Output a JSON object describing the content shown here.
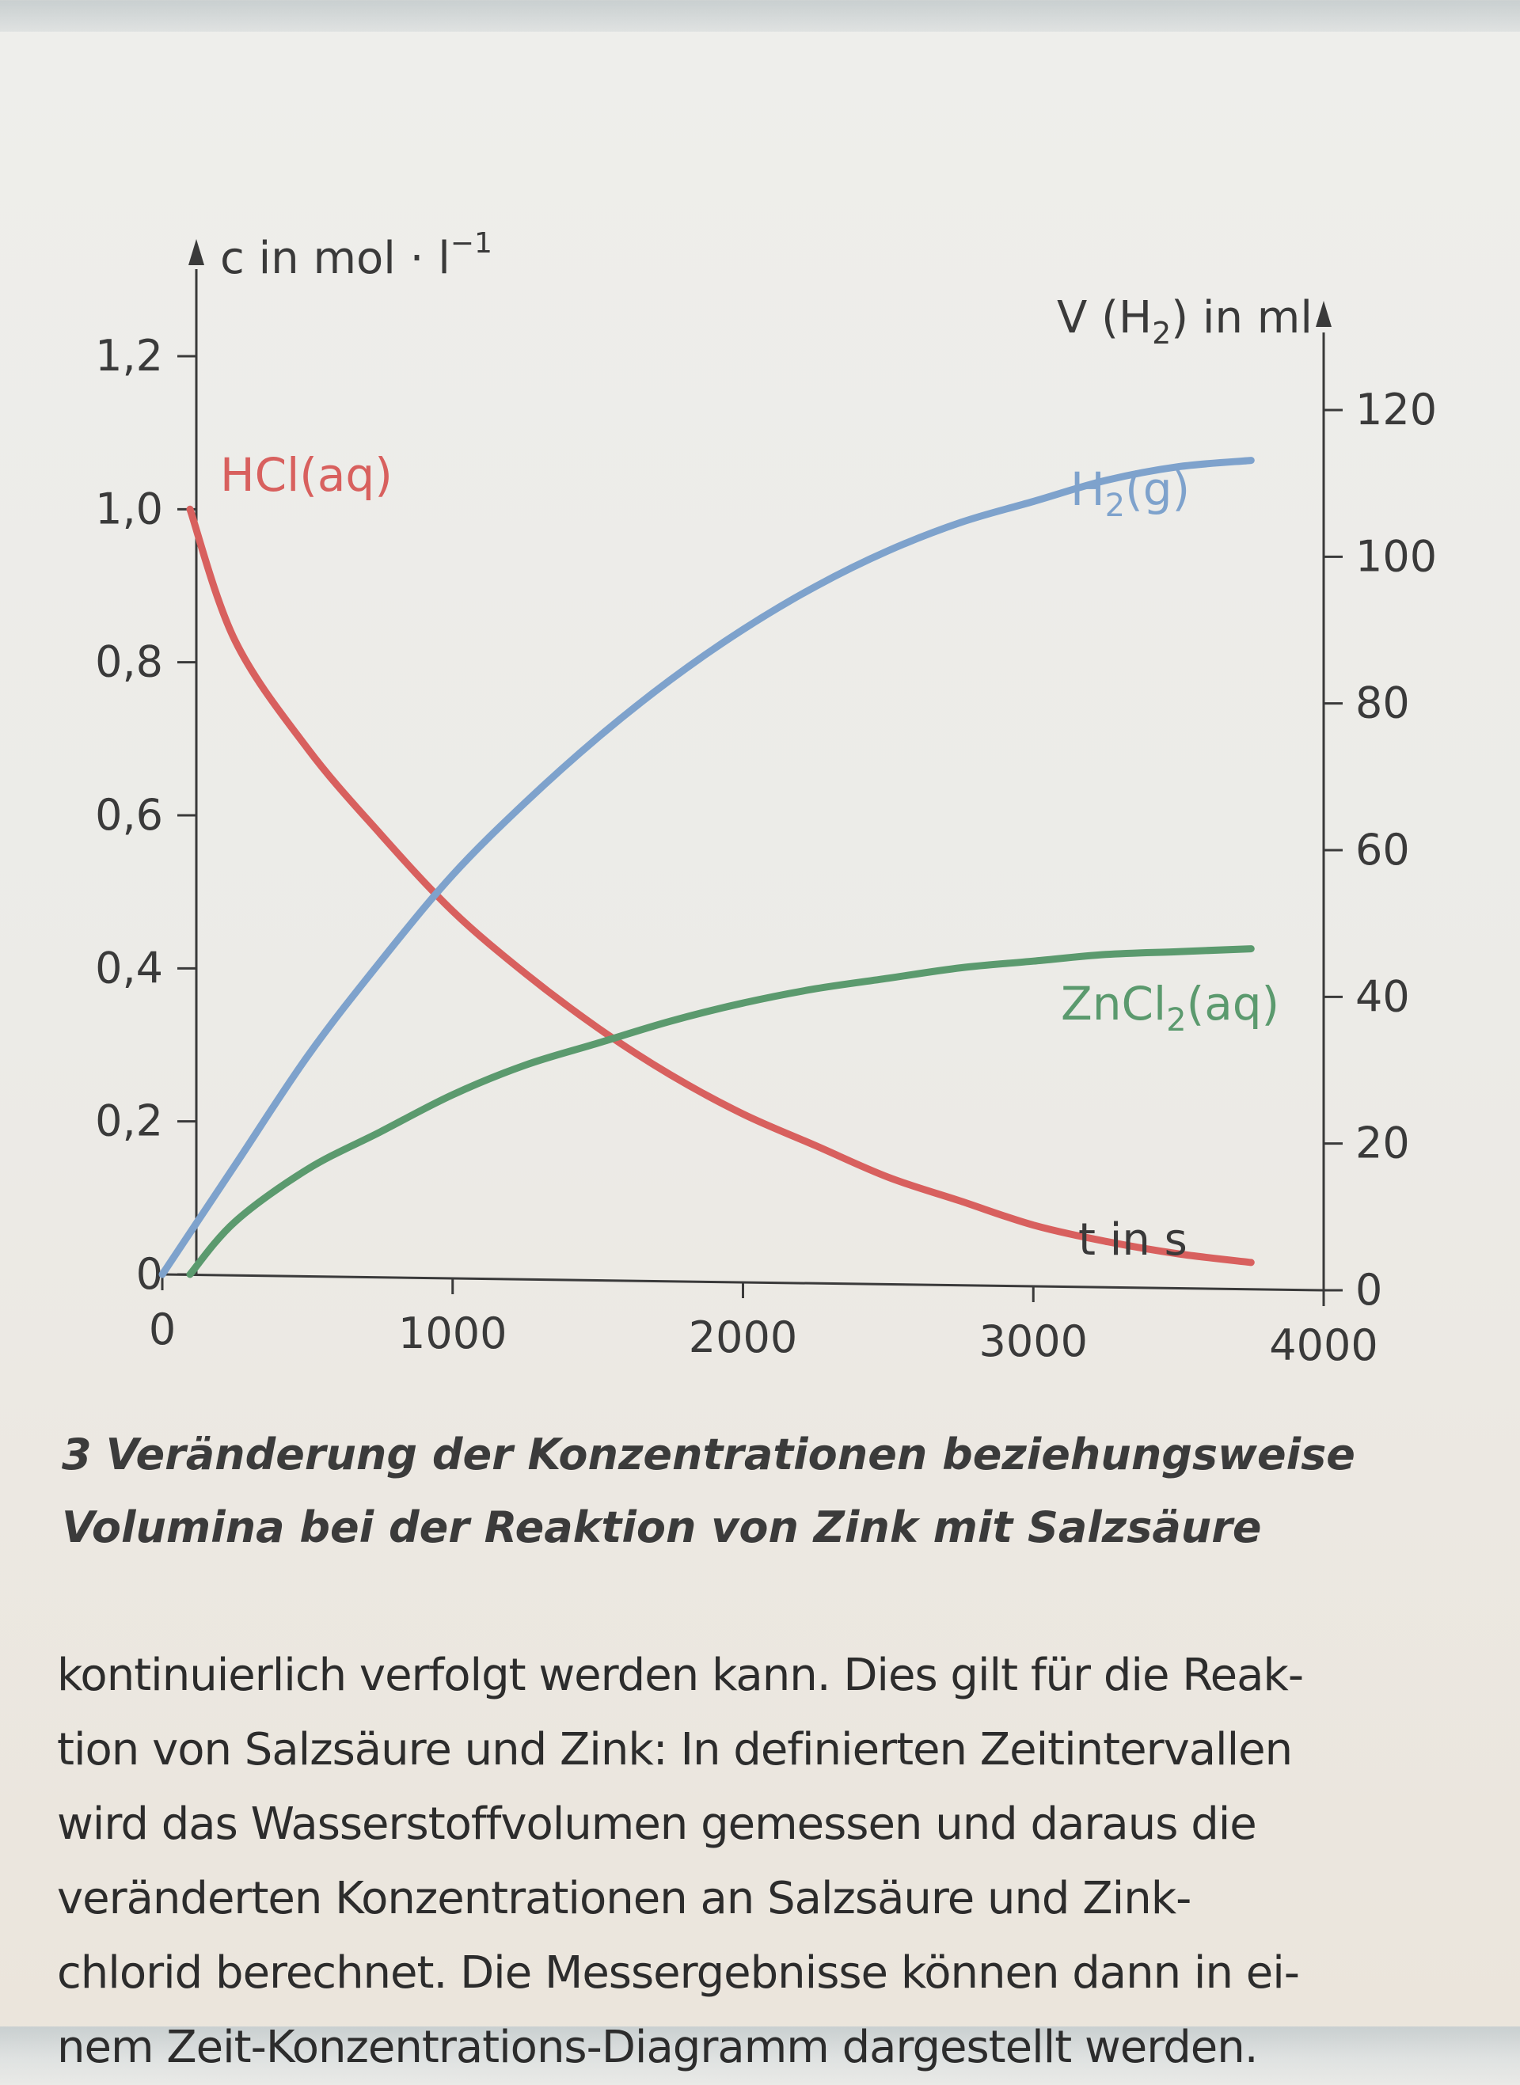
{
  "chart_data": {
    "type": "line",
    "left_axis": {
      "label": "c in mol · l",
      "label_sup": "−1",
      "ticks": [
        "0",
        "0,2",
        "0,4",
        "0,6",
        "0,8",
        "1,0",
        "1,2"
      ],
      "tick_values": [
        0,
        0.2,
        0.4,
        0.6,
        0.8,
        1.0,
        1.2
      ],
      "range": [
        0,
        1.2
      ]
    },
    "right_axis": {
      "label": "V (H",
      "label_sub": "2",
      "label_end": ") in ml",
      "ticks": [
        "0",
        "20",
        "40",
        "60",
        "80",
        "100",
        "120"
      ],
      "tick_values": [
        0,
        20,
        40,
        60,
        80,
        100,
        120
      ],
      "range": [
        0,
        120
      ]
    },
    "x_axis": {
      "label": "t in s",
      "ticks": [
        "0",
        "1000",
        "2000",
        "3000",
        "4000"
      ],
      "tick_values": [
        0,
        1000,
        2000,
        3000,
        4000
      ],
      "range": [
        0,
        4000
      ]
    },
    "series": [
      {
        "name": "HCl(aq)",
        "label_main": "HCl(aq)",
        "axis": "left",
        "color": "#d8605e",
        "x": [
          0,
          250,
          500,
          750,
          1000,
          1250,
          1500,
          1750,
          2000,
          2250,
          2500,
          2750,
          3000,
          3250,
          3500,
          3750
        ],
        "y": [
          1.0,
          0.83,
          0.69,
          0.58,
          0.48,
          0.4,
          0.33,
          0.27,
          0.22,
          0.18,
          0.14,
          0.11,
          0.08,
          0.06,
          0.045,
          0.035
        ]
      },
      {
        "name": "H2(g)",
        "label_main": "H",
        "label_sub": "2",
        "label_end": "(g)",
        "axis": "right",
        "color": "#7ea2cc",
        "x": [
          0,
          250,
          500,
          750,
          1000,
          1250,
          1500,
          1750,
          2000,
          2250,
          2500,
          2750,
          3000,
          3250,
          3500,
          3750
        ],
        "y": [
          0,
          15,
          30,
          43,
          55,
          65,
          74,
          82,
          89,
          95,
          100,
          104,
          107,
          110,
          112,
          113
        ]
      },
      {
        "name": "ZnCl2(aq)",
        "label_main": "ZnCl",
        "label_sub": "2",
        "label_end": "(aq)",
        "axis": "left",
        "color": "#5b9a6e",
        "x": [
          0,
          250,
          500,
          750,
          1000,
          1250,
          1500,
          1750,
          2000,
          2250,
          2500,
          2750,
          3000,
          3250,
          3500,
          3750
        ],
        "y": [
          0,
          0.07,
          0.14,
          0.19,
          0.24,
          0.28,
          0.31,
          0.34,
          0.365,
          0.385,
          0.4,
          0.415,
          0.425,
          0.435,
          0.44,
          0.445
        ]
      }
    ],
    "grid": false,
    "legend": "none"
  },
  "caption": {
    "number": "3",
    "line1": "Veränderung der Konzentrationen beziehungsweise",
    "line2": "Volumina bei der Reaktion von Zink mit Salzsäure"
  },
  "body_text": {
    "lines": [
      "kontinuierlich verfolgt werden kann. Dies gilt für die Reak-",
      "tion von Salzsäure und Zink: In definierten Zeitintervallen",
      "wird das Wasserstoffvolumen gemessen und daraus die",
      "veränderten Konzentrationen an Salzsäure und Zink-",
      "chlorid berechnet. Die Messergebnisse können dann in ei-",
      "nem Zeit-Konzentrations-Diagramm dargestellt werden."
    ]
  }
}
